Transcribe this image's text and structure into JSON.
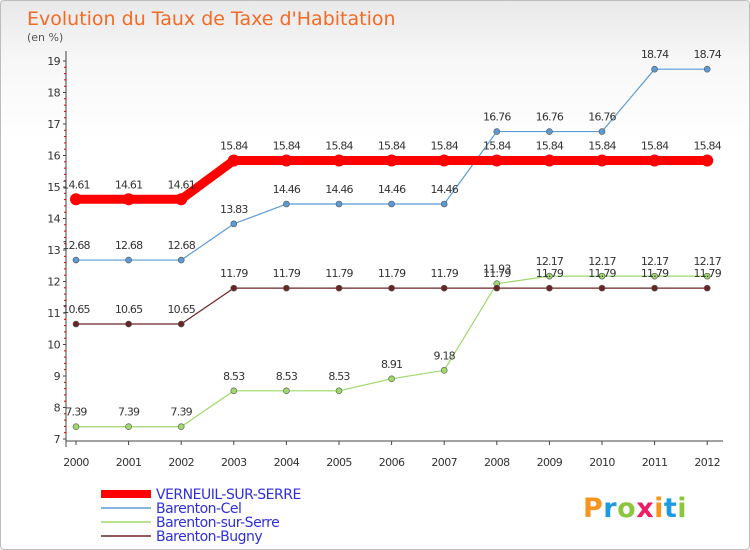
{
  "chart_data": {
    "type": "line",
    "title": "Evolution du Taux de Taxe d'Habitation",
    "subtitle": "(en %)",
    "categories": [
      "2000",
      "2001",
      "2002",
      "2003",
      "2004",
      "2005",
      "2006",
      "2007",
      "2008",
      "2009",
      "2010",
      "2011",
      "2012"
    ],
    "ylim": [
      7,
      19
    ],
    "yticks": [
      7,
      8,
      9,
      10,
      11,
      12,
      13,
      14,
      15,
      16,
      17,
      18,
      19
    ],
    "grid": false,
    "legend_position": "bottom-left",
    "series": [
      {
        "name": "VERNEUIL-SUR-SERRE",
        "color": "#ff0000",
        "values": [
          14.61,
          14.61,
          14.61,
          15.84,
          15.84,
          15.84,
          15.84,
          15.84,
          15.84,
          15.84,
          15.84,
          15.84,
          15.84
        ],
        "labels": [
          "14.61",
          "14.61",
          "14.61",
          "15.84",
          "15.84",
          "15.84",
          "15.84",
          "15.84",
          "15.84",
          "15.84",
          "15.84",
          "15.84",
          "15.84"
        ]
      },
      {
        "name": "Barenton-Cel",
        "color": "#5b9bd5",
        "values": [
          12.68,
          12.68,
          12.68,
          13.83,
          14.46,
          14.46,
          14.46,
          14.46,
          16.76,
          16.76,
          16.76,
          18.74,
          18.74
        ],
        "labels": [
          "12.68",
          "12.68",
          "12.68",
          "13.83",
          "14.46",
          "14.46",
          "14.46",
          "14.46",
          "16.76",
          "16.76",
          "16.76",
          "18.74",
          "18.74"
        ]
      },
      {
        "name": "Barenton-sur-Serre",
        "color": "#9fd86b",
        "values": [
          7.39,
          7.39,
          7.39,
          8.53,
          8.53,
          8.53,
          8.91,
          9.18,
          11.93,
          12.17,
          12.17,
          12.17,
          12.17
        ],
        "labels": [
          "7.39",
          "7.39",
          "7.39",
          "8.53",
          "8.53",
          "8.53",
          "8.91",
          "9.18",
          "11.93",
          "12.17",
          "12.17",
          "12.17",
          "12.17"
        ]
      },
      {
        "name": "Barenton-Bugny",
        "color": "#6b2424",
        "values": [
          10.65,
          10.65,
          10.65,
          11.79,
          11.79,
          11.79,
          11.79,
          11.79,
          11.79,
          11.79,
          11.79,
          11.79,
          11.79
        ],
        "labels": [
          "10.65",
          "10.65",
          "10.65",
          "11.79",
          "11.79",
          "11.79",
          "11.79",
          "11.79",
          "11.79",
          "11.79",
          "11.79",
          "11.79",
          "11.79"
        ]
      }
    ]
  },
  "logo": {
    "text": "Proxiti",
    "colors": [
      "#f7941d",
      "#1e9be0",
      "#8cc63f",
      "#e91e63",
      "#f7941d",
      "#1e9be0",
      "#8cc63f"
    ]
  }
}
